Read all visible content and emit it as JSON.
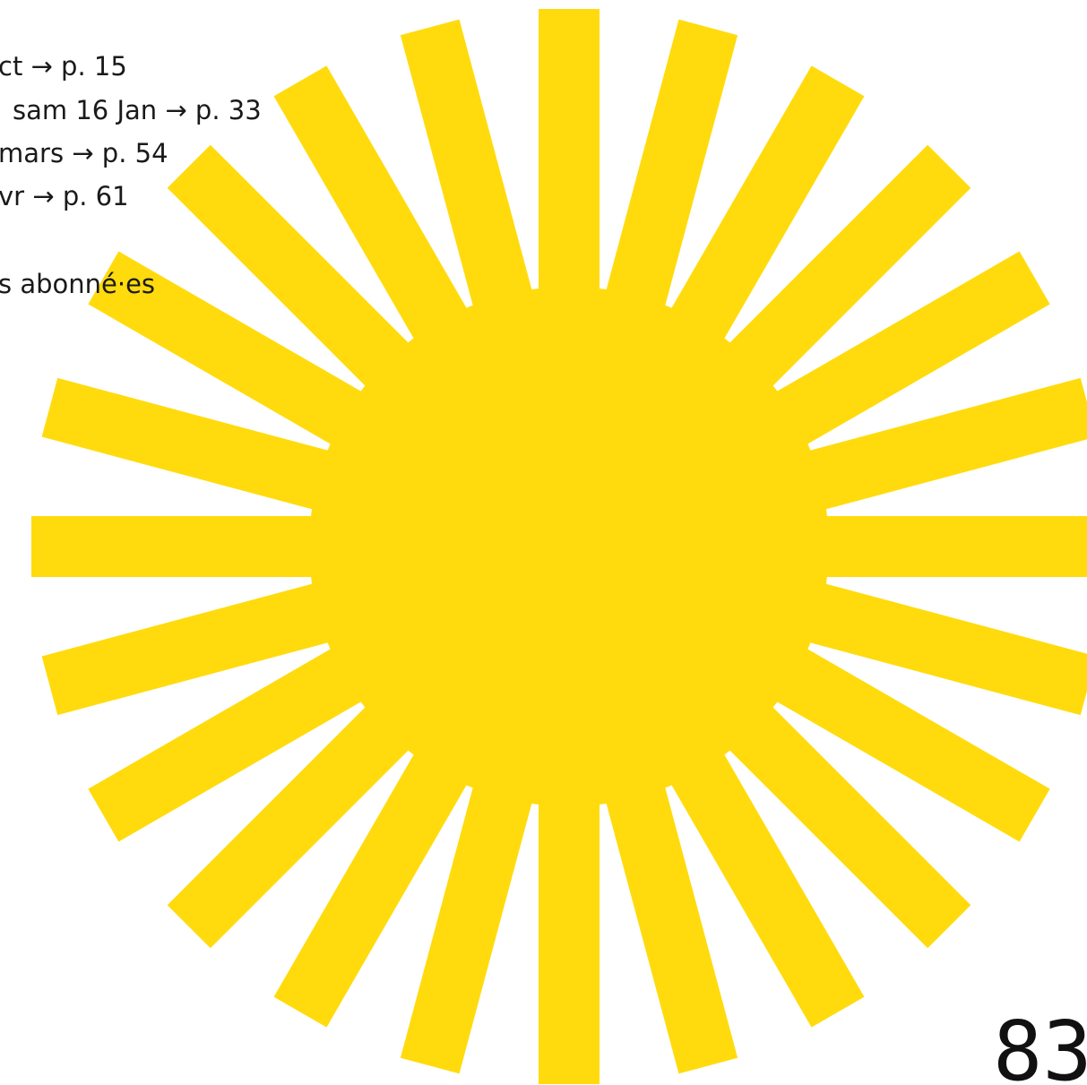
{
  "agenda": {
    "lines": [
      "ct → p. 15",
      "sam 16 Jan → p. 33",
      "mars → p. 54",
      "vr → p. 61"
    ],
    "note": "s abonné·es"
  },
  "page_number": "83"
}
